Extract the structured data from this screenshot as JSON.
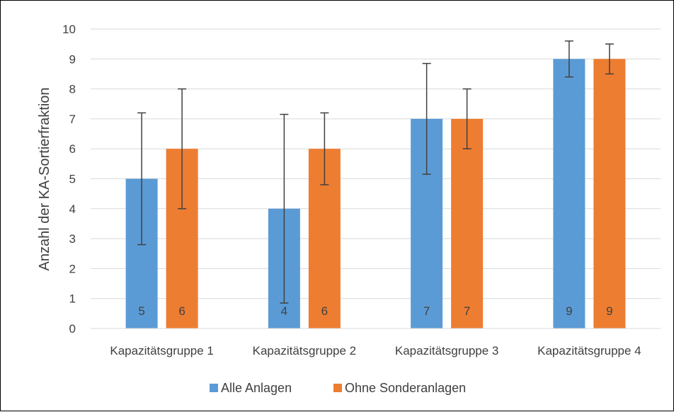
{
  "chart_data": {
    "type": "bar",
    "title": "",
    "xlabel": "",
    "ylabel": "Anzahl der KA-Sortierfraktion",
    "ylim": [
      0,
      10
    ],
    "yticks": [
      0,
      1,
      2,
      3,
      4,
      5,
      6,
      7,
      8,
      9,
      10
    ],
    "grid": true,
    "legend_position": "bottom",
    "categories": [
      "Kapazitätsgruppe 1",
      "Kapazitätsgruppe 2",
      "Kapazitätsgruppe 3",
      "Kapazitätsgruppe 4"
    ],
    "series": [
      {
        "name": "Alle Anlagen",
        "color": "#5B9BD5",
        "values": [
          5,
          4,
          7,
          9
        ],
        "error_low": [
          2.8,
          0.85,
          5.15,
          8.4
        ],
        "error_high": [
          7.2,
          7.15,
          8.85,
          9.6
        ],
        "data_labels": [
          "5",
          "4",
          "7",
          "9"
        ]
      },
      {
        "name": "Ohne Sonderanlagen",
        "color": "#ED7D31",
        "values": [
          6,
          6,
          7,
          9
        ],
        "error_low": [
          4,
          4.8,
          6,
          8.5
        ],
        "error_high": [
          8,
          7.2,
          8,
          9.5
        ],
        "data_labels": [
          "6",
          "6",
          "7",
          "9"
        ]
      }
    ]
  }
}
